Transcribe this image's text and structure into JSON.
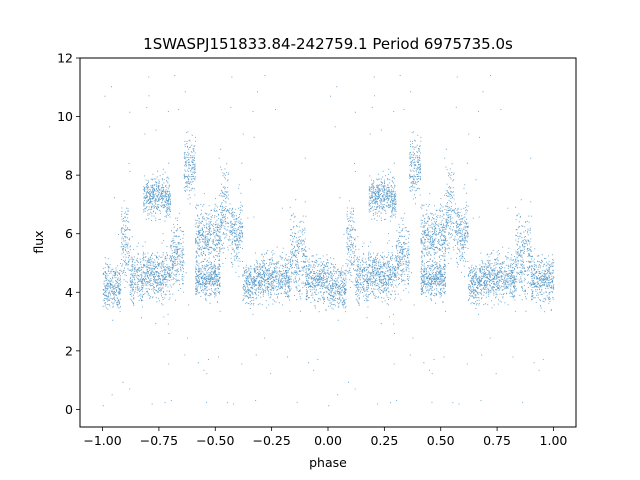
{
  "chart_data": {
    "type": "scatter",
    "title": "1SWASPJ151833.84-242759.1 Period 6975735.0s",
    "xlabel": "phase",
    "ylabel": "flux",
    "xlim": [
      -1.1,
      1.1
    ],
    "ylim": [
      -0.6,
      12
    ],
    "xticks": [
      -1.0,
      -0.75,
      -0.5,
      -0.25,
      0.0,
      0.25,
      0.5,
      0.75,
      1.0
    ],
    "xtick_labels": [
      "−1.00",
      "−0.75",
      "−0.50",
      "−0.25",
      "0.00",
      "0.25",
      "0.50",
      "0.75",
      "1.00"
    ],
    "yticks": [
      0,
      2,
      4,
      6,
      8,
      10,
      12
    ],
    "ytick_labels": [
      "0",
      "2",
      "4",
      "6",
      "8",
      "10",
      "12"
    ],
    "grid": false,
    "legend": "none",
    "point_color": "#1f77b4",
    "series": [
      {
        "x_range": [
          -1.0,
          1.0
        ],
        "symmetric_about_phase": 1.0,
        "points_per_half": 4500,
        "typical_flux": 4.5,
        "flux_range": [
          0.0,
          11.5
        ],
        "segments": [
          {
            "phase": [
              0.0,
              0.08
            ],
            "flux": 4.2,
            "spread": 0.7
          },
          {
            "phase": [
              0.08,
              0.12
            ],
            "flux": 5.5,
            "spread": 1.2
          },
          {
            "phase": [
              0.12,
              0.18
            ],
            "flux": 4.5,
            "spread": 0.8
          },
          {
            "phase": [
              0.18,
              0.3
            ],
            "flux": 7.3,
            "spread": 0.6
          },
          {
            "phase": [
              0.18,
              0.3
            ],
            "flux": 4.6,
            "spread": 0.7
          },
          {
            "phase": [
              0.3,
              0.36
            ],
            "flux": 5.2,
            "spread": 1.0
          },
          {
            "phase": [
              0.36,
              0.41
            ],
            "flux": 8.3,
            "spread": 1.0
          },
          {
            "phase": [
              0.41,
              0.52
            ],
            "flux": 5.9,
            "spread": 0.9
          },
          {
            "phase": [
              0.41,
              0.52
            ],
            "flux": 4.5,
            "spread": 0.6
          },
          {
            "phase": [
              0.52,
              0.56
            ],
            "flux": 6.8,
            "spread": 1.3
          },
          {
            "phase": [
              0.56,
              0.62
            ],
            "flux": 6.0,
            "spread": 1.0
          },
          {
            "phase": [
              0.62,
              0.67
            ],
            "flux": 4.3,
            "spread": 0.6
          },
          {
            "phase": [
              0.67,
              0.83
            ],
            "flux": 4.5,
            "spread": 0.7
          },
          {
            "phase": [
              0.83,
              0.9
            ],
            "flux": 5.2,
            "spread": 1.2
          },
          {
            "phase": [
              0.9,
              1.0
            ],
            "flux": 4.5,
            "spread": 0.8
          }
        ]
      }
    ]
  }
}
